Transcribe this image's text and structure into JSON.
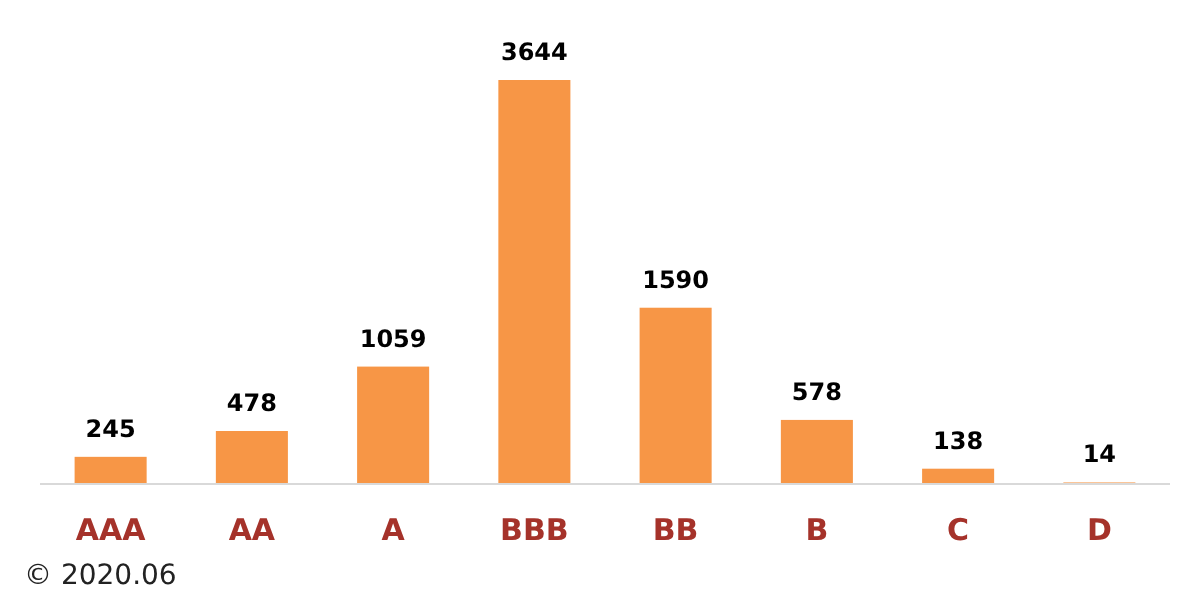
{
  "chart_data": {
    "type": "bar",
    "categories": [
      "AAA",
      "AA",
      "A",
      "BBB",
      "BB",
      "B",
      "C",
      "D"
    ],
    "values": [
      245,
      478,
      1059,
      3644,
      1590,
      578,
      138,
      14
    ],
    "color": "#f79646",
    "data_labels": true,
    "annotations": [
      "© 2020.06"
    ]
  }
}
